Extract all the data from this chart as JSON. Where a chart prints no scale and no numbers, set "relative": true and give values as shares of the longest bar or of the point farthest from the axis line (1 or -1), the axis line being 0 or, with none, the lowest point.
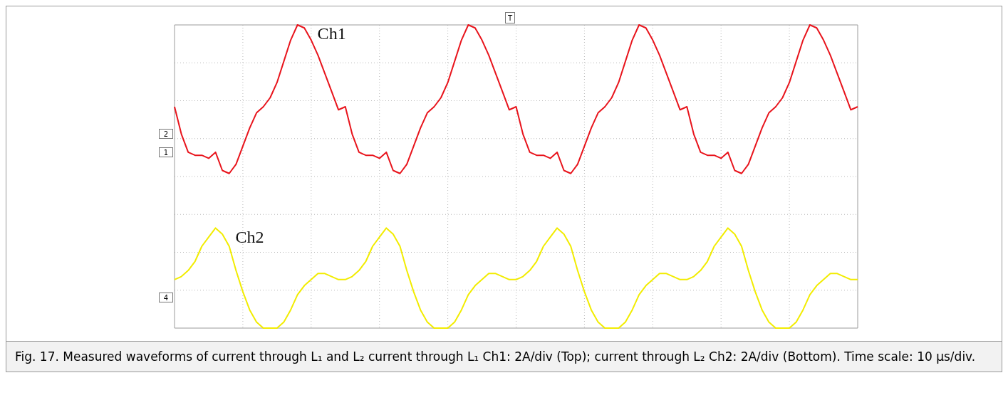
{
  "chart_data": {
    "type": "line",
    "relative": true,
    "grid": true,
    "legend": false,
    "marker": "none",
    "line_style": "solid",
    "categories": [
      null,
      null,
      null,
      null,
      null,
      null,
      null,
      null,
      null,
      null,
      null,
      null,
      null,
      null,
      null,
      null,
      null,
      null,
      null,
      null,
      null,
      null,
      null,
      null,
      null,
      null,
      null,
      null,
      null,
      null,
      null,
      null,
      null,
      null,
      null,
      null,
      null,
      null,
      null,
      null,
      null,
      null,
      null,
      null,
      null,
      null,
      null,
      null,
      null,
      null,
      null,
      null,
      null,
      null,
      null,
      null,
      null,
      null,
      null,
      null,
      null,
      null,
      null,
      null,
      null,
      null,
      null,
      null,
      null,
      null,
      null,
      null,
      null,
      null,
      null,
      null,
      null,
      null,
      null,
      null,
      null,
      null,
      null,
      null,
      null,
      null,
      null,
      null,
      null,
      null,
      null,
      null,
      null,
      null,
      null,
      null,
      null,
      null,
      null,
      null,
      null
    ],
    "series": [
      {
        "name": "Ch1",
        "color": "#e8141c",
        "values": [
          0.73,
          0.64,
          0.58,
          0.57,
          0.57,
          0.56,
          0.58,
          0.52,
          0.51,
          0.54,
          0.6,
          0.66,
          0.71,
          0.73,
          0.76,
          0.81,
          0.88,
          0.95,
          1.0,
          0.99,
          0.95,
          0.9,
          0.84,
          0.78,
          0.72,
          0.73,
          0.64,
          0.58,
          0.57,
          0.57,
          0.56,
          0.58,
          0.52,
          0.51,
          0.54,
          0.6,
          0.66,
          0.71,
          0.73,
          0.76,
          0.81,
          0.88,
          0.95,
          1.0,
          0.99,
          0.95,
          0.9,
          0.84,
          0.78,
          0.72,
          0.73,
          0.64,
          0.58,
          0.57,
          0.57,
          0.56,
          0.58,
          0.52,
          0.51,
          0.54,
          0.6,
          0.66,
          0.71,
          0.73,
          0.76,
          0.81,
          0.88,
          0.95,
          1.0,
          0.99,
          0.95,
          0.9,
          0.84,
          0.78,
          0.72,
          0.73,
          0.64,
          0.58,
          0.57,
          0.57,
          0.56,
          0.58,
          0.52,
          0.51,
          0.54,
          0.6,
          0.66,
          0.71,
          0.73,
          0.76,
          0.81,
          0.88,
          0.95,
          1.0,
          0.99,
          0.95,
          0.9,
          0.84,
          0.78,
          0.72,
          0.73
        ]
      },
      {
        "name": "Ch2",
        "color": "#f2ec00",
        "values": [
          0.16,
          0.17,
          0.19,
          0.22,
          0.27,
          0.3,
          0.33,
          0.31,
          0.27,
          0.19,
          0.12,
          0.06,
          0.02,
          0.0,
          0.0,
          0.0,
          0.02,
          0.06,
          0.11,
          0.14,
          0.16,
          0.18,
          0.18,
          0.17,
          0.16,
          0.16,
          0.17,
          0.19,
          0.22,
          0.27,
          0.3,
          0.33,
          0.31,
          0.27,
          0.19,
          0.12,
          0.06,
          0.02,
          0.0,
          0.0,
          0.0,
          0.02,
          0.06,
          0.11,
          0.14,
          0.16,
          0.18,
          0.18,
          0.17,
          0.16,
          0.16,
          0.17,
          0.19,
          0.22,
          0.27,
          0.3,
          0.33,
          0.31,
          0.27,
          0.19,
          0.12,
          0.06,
          0.02,
          0.0,
          0.0,
          0.0,
          0.02,
          0.06,
          0.11,
          0.14,
          0.16,
          0.18,
          0.18,
          0.17,
          0.16,
          0.16,
          0.17,
          0.19,
          0.22,
          0.27,
          0.3,
          0.33,
          0.31,
          0.27,
          0.19,
          0.12,
          0.06,
          0.02,
          0.0,
          0.0,
          0.0,
          0.02,
          0.06,
          0.11,
          0.14,
          0.16,
          0.18,
          0.18,
          0.17,
          0.16,
          0.16
        ]
      }
    ],
    "annotations": [
      "2",
      "1",
      "4",
      "T",
      "Fig. 17.  Measured waveforms of current through L₁ and L₂ current through L₁ Ch1: 2A/div (Top); current through L₂ Ch2: 2A/div (Bottom). Time scale: 10 μs/div."
    ]
  }
}
